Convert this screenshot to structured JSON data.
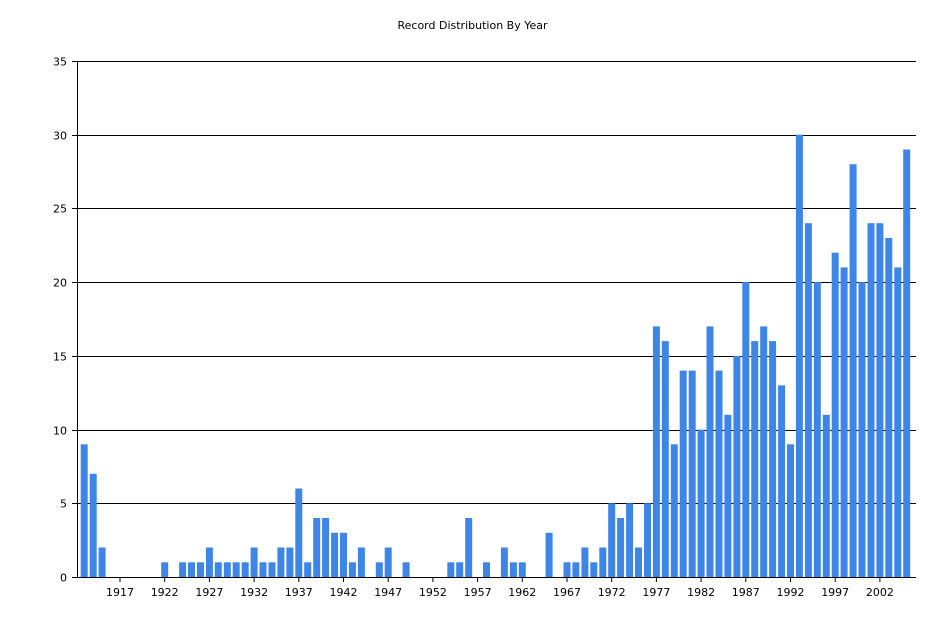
{
  "chart_data": {
    "type": "bar",
    "title": "Record Distribution By Year",
    "xlabel": "",
    "ylabel": "",
    "ylim": [
      0,
      35
    ],
    "yticks": [
      0,
      5,
      10,
      15,
      20,
      25,
      30,
      35
    ],
    "xtick_labels": [
      "1917",
      "1922",
      "1927",
      "1932",
      "1937",
      "1942",
      "1947",
      "1952",
      "1957",
      "1962",
      "1967",
      "1972",
      "1977",
      "1982",
      "1987",
      "1992",
      "1997",
      "2002"
    ],
    "grid": "horizontal",
    "bar_color": "#3d86e8",
    "categories": [
      1913,
      1914,
      1915,
      1916,
      1917,
      1918,
      1919,
      1920,
      1921,
      1922,
      1923,
      1924,
      1925,
      1926,
      1927,
      1928,
      1929,
      1930,
      1931,
      1932,
      1933,
      1934,
      1935,
      1936,
      1937,
      1938,
      1939,
      1940,
      1941,
      1942,
      1943,
      1944,
      1945,
      1946,
      1947,
      1948,
      1949,
      1950,
      1951,
      1952,
      1953,
      1954,
      1955,
      1956,
      1957,
      1958,
      1959,
      1960,
      1961,
      1962,
      1963,
      1964,
      1965,
      1966,
      1967,
      1968,
      1969,
      1970,
      1971,
      1972,
      1973,
      1974,
      1975,
      1976,
      1977,
      1978,
      1979,
      1980,
      1981,
      1982,
      1983,
      1984,
      1985,
      1986,
      1987,
      1988,
      1989,
      1990,
      1991,
      1992,
      1993,
      1994,
      1995,
      1996,
      1997,
      1998,
      1999,
      2000,
      2001,
      2002,
      2003,
      2004,
      2005
    ],
    "values": [
      9,
      7,
      2,
      0,
      0,
      0,
      0,
      0,
      0,
      1,
      0,
      1,
      1,
      1,
      2,
      1,
      1,
      1,
      1,
      2,
      1,
      1,
      2,
      2,
      6,
      1,
      4,
      4,
      3,
      3,
      1,
      2,
      0,
      1,
      2,
      0,
      1,
      0,
      0,
      0,
      0,
      1,
      1,
      4,
      0,
      1,
      0,
      2,
      1,
      1,
      0,
      0,
      3,
      0,
      1,
      1,
      2,
      1,
      2,
      5,
      4,
      5,
      2,
      5,
      17,
      16,
      9,
      14,
      14,
      10,
      17,
      14,
      11,
      15,
      20,
      16,
      17,
      16,
      13,
      9,
      30,
      24,
      20,
      11,
      22,
      21,
      28,
      20,
      24,
      24,
      23,
      21,
      29
    ]
  }
}
